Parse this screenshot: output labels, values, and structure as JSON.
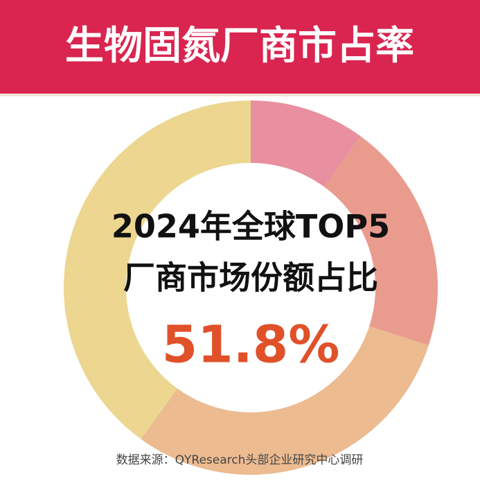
{
  "chart_data": {
    "type": "donut",
    "title": "生物固氮厂商市占率",
    "center_lines": [
      "2024年全球TOP5",
      "厂商市场份额占比"
    ],
    "highlight": "51.8%",
    "source": "数据来源：QYResearch头部企业研究中心调研",
    "values": [
      10,
      20,
      30,
      40
    ],
    "colors": [
      "#e88fa0",
      "#e99b8e",
      "#ecbb90",
      "#ecd690"
    ]
  }
}
